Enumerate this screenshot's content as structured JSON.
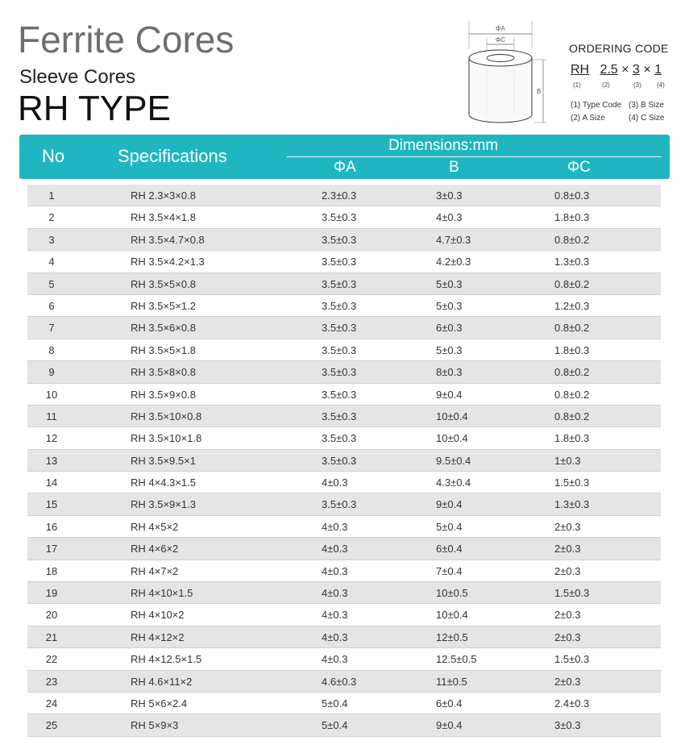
{
  "title": "Ferrite Cores",
  "subtitle": "Sleeve Cores",
  "type_title": "RH TYPE",
  "diagram": {
    "label_a": "ΦA",
    "label_c": "ΦC",
    "label_b": "B"
  },
  "ordering": {
    "title": "ORDERING CODE",
    "parts": [
      "RH",
      "2.5",
      "3",
      "1"
    ],
    "sep": "×",
    "nums": [
      "(1)",
      "(2)",
      "(3)",
      "(4)"
    ],
    "legend": [
      "(1) Type Code",
      "(3) B Size",
      "(2) A Size",
      "(4) C Size"
    ]
  },
  "colors": {
    "header": "#1fb6c1",
    "stripe": "#e5e5e5"
  },
  "table": {
    "headers": {
      "no": "No",
      "spec": "Specifications",
      "dims": "Dimensions:mm",
      "a": "ΦA",
      "b": "B",
      "c": "ΦC"
    },
    "rows": [
      [
        "1",
        "RH 2.3×3×0.8",
        "2.3±0.3",
        "3±0.3",
        "0.8±0.3"
      ],
      [
        "2",
        "RH 3.5×4×1.8",
        "3.5±0.3",
        "4±0.3",
        "1.8±0.3"
      ],
      [
        "3",
        "RH 3.5×4.7×0.8",
        "3.5±0.3",
        "4.7±0.3",
        "0.8±0.2"
      ],
      [
        "4",
        "RH 3.5×4.2×1.3",
        "3.5±0.3",
        "4.2±0.3",
        "1.3±0.3"
      ],
      [
        "5",
        "RH 3.5×5×0.8",
        "3.5±0.3",
        "5±0.3",
        "0.8±0.2"
      ],
      [
        "6",
        "RH 3.5×5×1.2",
        "3.5±0.3",
        "5±0.3",
        "1.2±0.3"
      ],
      [
        "7",
        "RH 3.5×6×0.8",
        "3.5±0.3",
        "6±0.3",
        "0.8±0.2"
      ],
      [
        "8",
        "RH 3.5×5×1.8",
        "3.5±0.3",
        "5±0.3",
        "1.8±0.3"
      ],
      [
        "9",
        "RH 3.5×8×0.8",
        "3.5±0.3",
        "8±0.3",
        "0.8±0.2"
      ],
      [
        "10",
        "RH 3.5×9×0.8",
        "3.5±0.3",
        "9±0.4",
        "0.8±0.2"
      ],
      [
        "11",
        "RH 3.5×10×0.8",
        "3.5±0.3",
        "10±0.4",
        "0.8±0.2"
      ],
      [
        "12",
        "RH 3.5×10×1.8",
        "3.5±0.3",
        "10±0.4",
        "1.8±0.3"
      ],
      [
        "13",
        "RH 3.5×9.5×1",
        "3.5±0.3",
        "9.5±0.4",
        "1±0.3"
      ],
      [
        "14",
        "RH 4×4.3×1.5",
        "4±0.3",
        "4.3±0.4",
        "1.5±0.3"
      ],
      [
        "15",
        "RH 3.5×9×1.3",
        "3.5±0.3",
        "9±0.4",
        "1.3±0.3"
      ],
      [
        "16",
        "RH 4×5×2",
        "4±0.3",
        "5±0.4",
        "2±0.3"
      ],
      [
        "17",
        "RH 4×6×2",
        "4±0.3",
        "6±0.4",
        "2±0.3"
      ],
      [
        "18",
        "RH 4×7×2",
        "4±0.3",
        "7±0.4",
        "2±0.3"
      ],
      [
        "19",
        "RH 4×10×1.5",
        "4±0.3",
        "10±0.5",
        "1.5±0.3"
      ],
      [
        "20",
        "RH 4×10×2",
        "4±0.3",
        "10±0.4",
        "2±0.3"
      ],
      [
        "21",
        "RH 4×12×2",
        "4±0.3",
        "12±0.5",
        "2±0.3"
      ],
      [
        "22",
        "RH 4×12.5×1.5",
        "4±0.3",
        "12.5±0.5",
        "1.5±0.3"
      ],
      [
        "23",
        "RH 4.6×11×2",
        "4.6±0.3",
        "11±0.5",
        "2±0.3"
      ],
      [
        "24",
        "RH 5×6×2.4",
        "5±0.4",
        "6±0.4",
        "2.4±0.3"
      ],
      [
        "25",
        "RH 5×9×3",
        "5±0.4",
        "9±0.4",
        "3±0.3"
      ]
    ]
  }
}
